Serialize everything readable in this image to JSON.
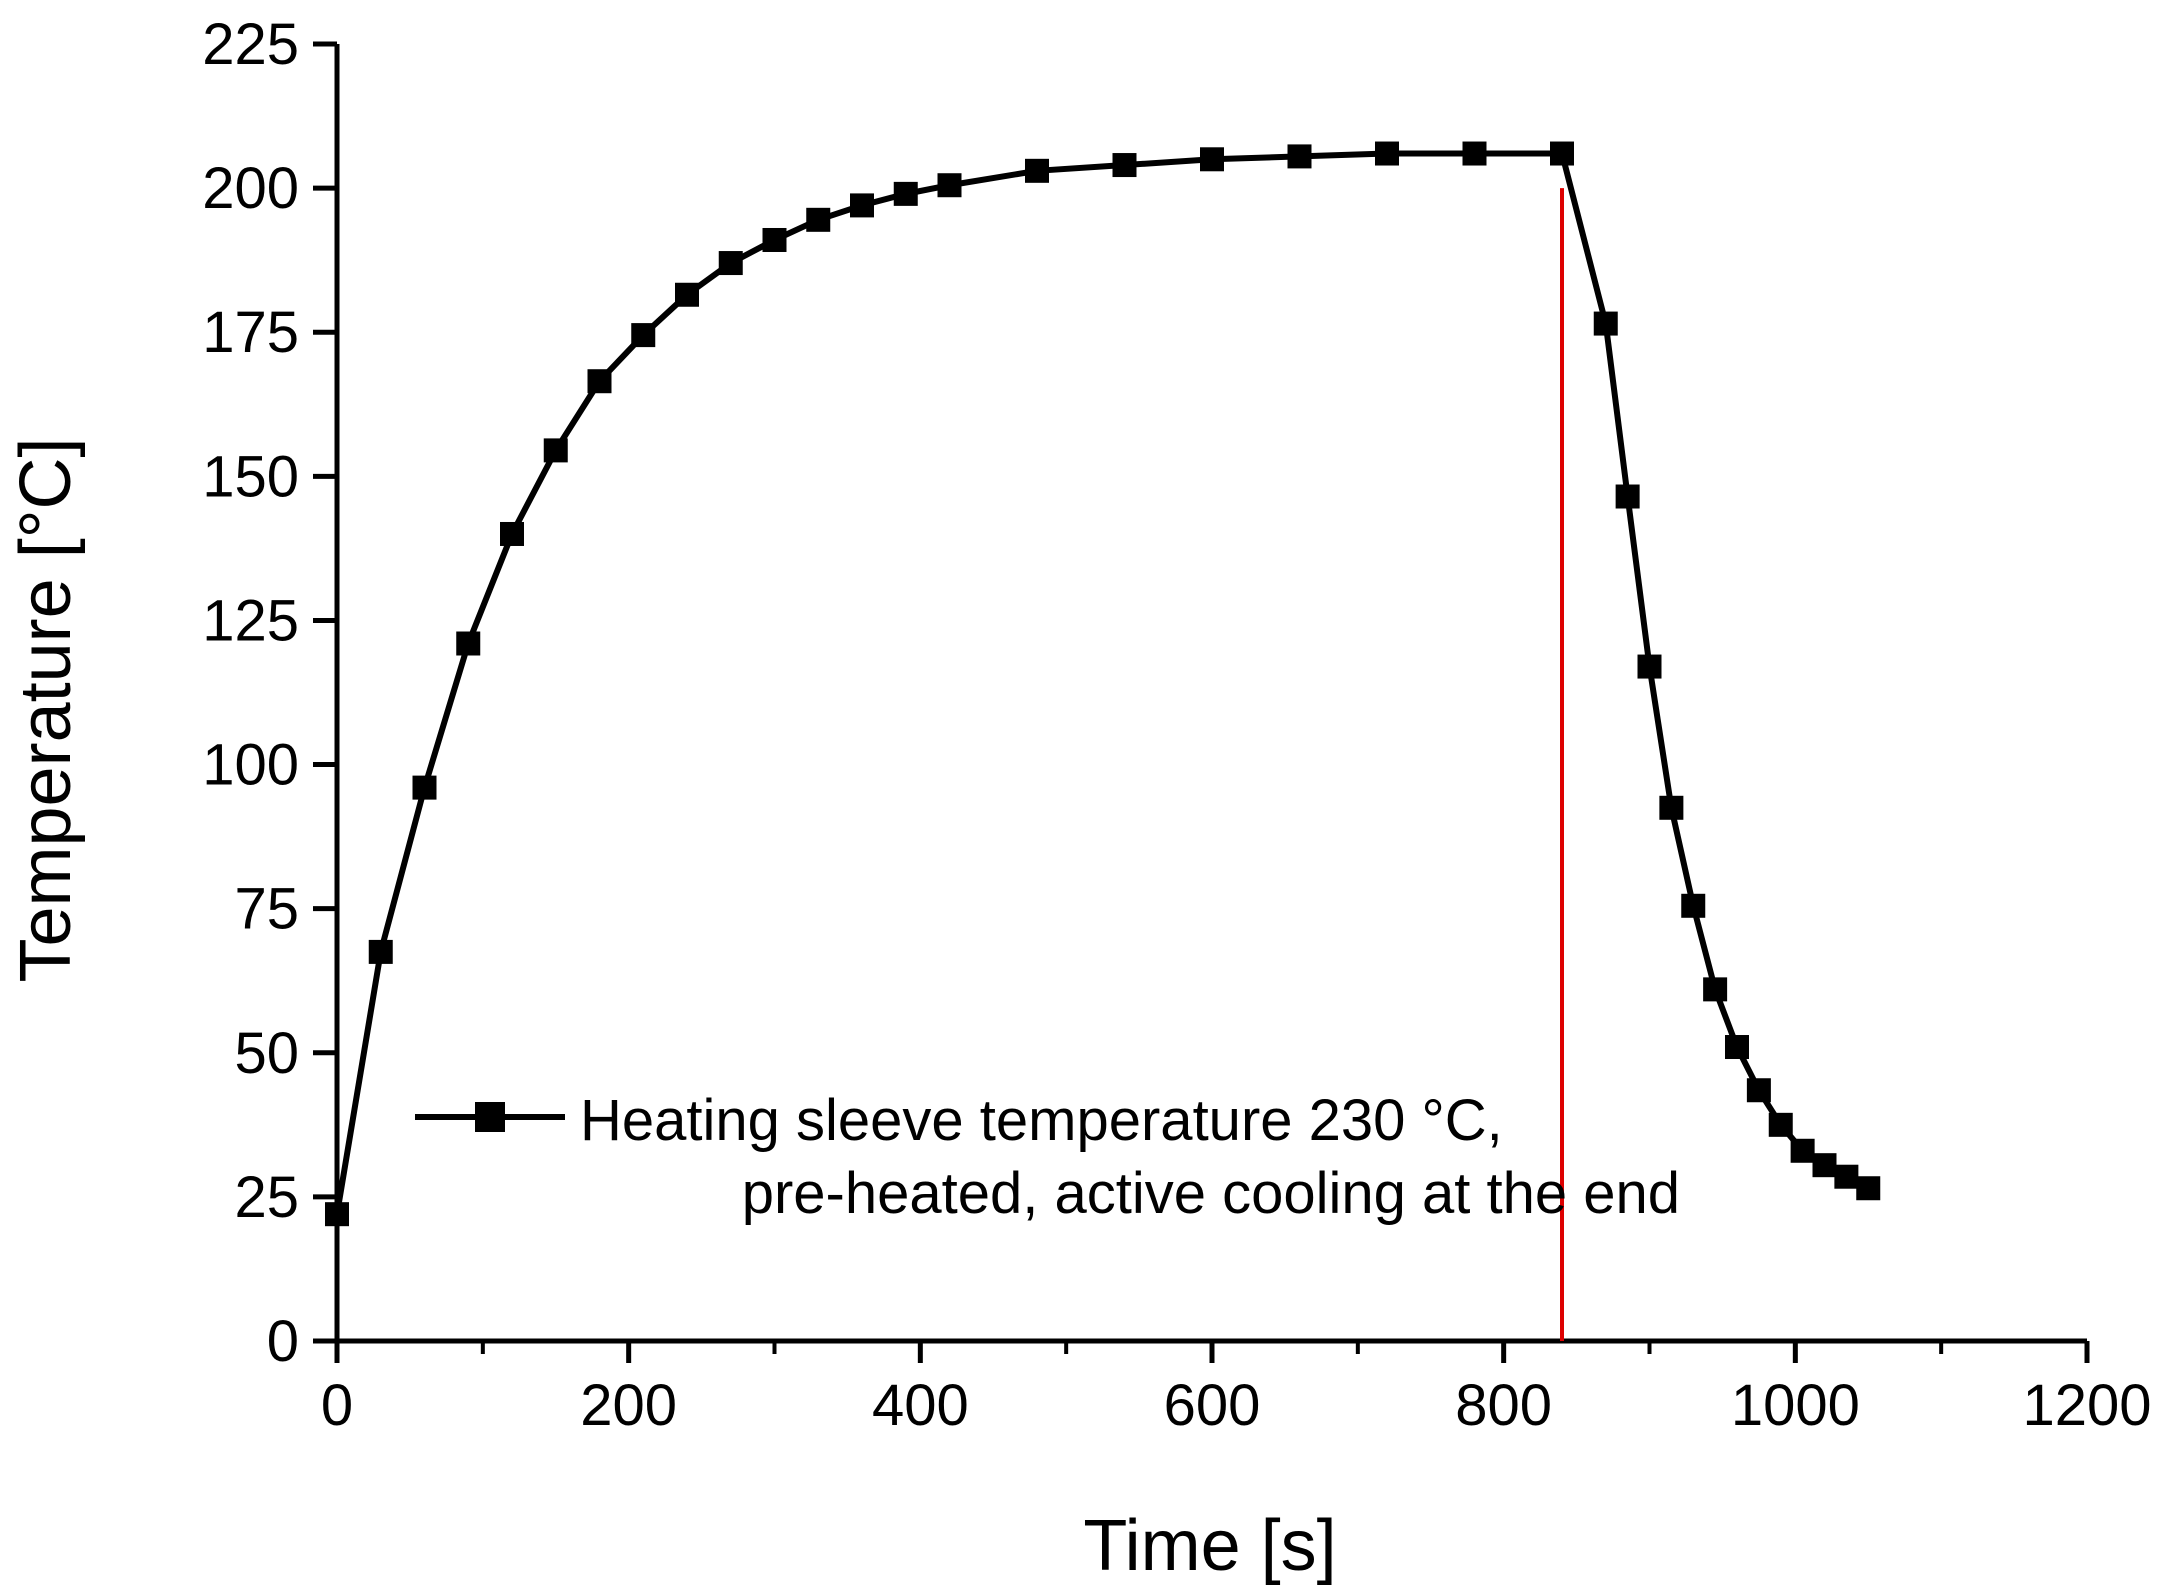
{
  "chart_data": {
    "type": "line",
    "title": "",
    "xlabel": "Time [s]",
    "ylabel": "Temperature [°C]",
    "xlim": [
      0,
      1200
    ],
    "ylim": [
      0,
      225
    ],
    "x_ticks": [
      0,
      200,
      400,
      600,
      800,
      1000,
      1200
    ],
    "x_tick_labels": [
      "0",
      "200",
      "400",
      "600",
      "800",
      "1000",
      "1200"
    ],
    "x_minor_ticks": [
      100,
      300,
      500,
      700,
      900,
      1100
    ],
    "y_ticks": [
      0,
      25,
      50,
      75,
      100,
      125,
      150,
      175,
      200,
      225
    ],
    "y_tick_labels": [
      "0",
      "25",
      "50",
      "75",
      "100",
      "125",
      "150",
      "175",
      "200",
      "225"
    ],
    "grid": false,
    "legend_position": "bottom-center",
    "series": [
      {
        "name": "Heating sleeve temperature 230 °C,",
        "name_line2": "pre-heated, active cooling at the end",
        "color": "#000000",
        "marker": "square",
        "x": [
          0,
          30,
          60,
          90,
          120,
          150,
          180,
          210,
          240,
          270,
          300,
          330,
          360,
          390,
          420,
          480,
          540,
          600,
          660,
          720,
          780,
          840,
          870,
          885,
          900,
          915,
          930,
          945,
          960,
          975,
          990,
          1005,
          1020,
          1035,
          1050
        ],
        "y": [
          22,
          67.5,
          96,
          121,
          140,
          154.5,
          166.5,
          174.5,
          181.5,
          187,
          191,
          194.5,
          197,
          199,
          200.5,
          203,
          204,
          205,
          205.5,
          206,
          206,
          206,
          176.5,
          146.5,
          117,
          92.5,
          75.5,
          61,
          51,
          43.5,
          37.5,
          33,
          30.5,
          28.5,
          26.5
        ]
      }
    ],
    "annotations": [
      {
        "type": "vertical-line",
        "x": 840,
        "y_start": 0,
        "y_end": 200,
        "color": "#dd0000"
      }
    ]
  }
}
